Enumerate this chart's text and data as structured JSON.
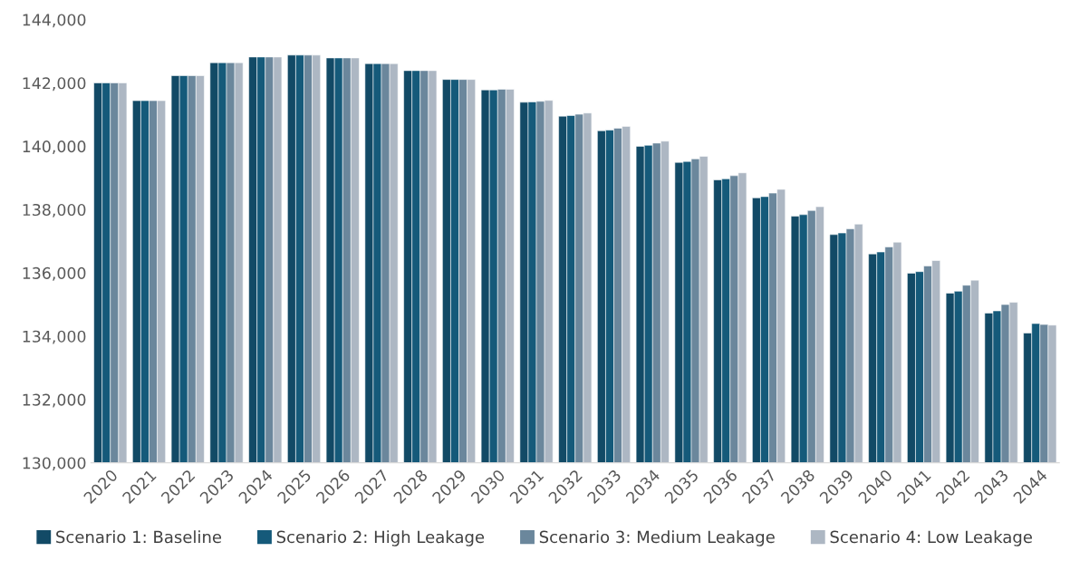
{
  "chart_data": {
    "type": "bar",
    "categories": [
      "2020",
      "2021",
      "2022",
      "2023",
      "2024",
      "2025",
      "2026",
      "2027",
      "2028",
      "2029",
      "2030",
      "2031",
      "2032",
      "2033",
      "2034",
      "2035",
      "2036",
      "2037",
      "2038",
      "2039",
      "2040",
      "2041",
      "2042",
      "2043",
      "2044"
    ],
    "series": [
      {
        "name": "Scenario 1: Baseline",
        "color": "#124a66",
        "values": [
          142000,
          141440,
          142230,
          142640,
          142820,
          142880,
          142790,
          142610,
          142390,
          142110,
          141780,
          141390,
          140950,
          140490,
          140000,
          139490,
          138940,
          138370,
          137790,
          137210,
          136600,
          135990,
          135360,
          134730,
          134100
        ]
      },
      {
        "name": "Scenario 2: High Leakage",
        "color": "#155a7a",
        "values": [
          142000,
          141440,
          142230,
          142640,
          142820,
          142880,
          142790,
          142610,
          142390,
          142110,
          141780,
          141400,
          140970,
          140510,
          140030,
          139520,
          138970,
          138410,
          137840,
          137260,
          136660,
          136040,
          135420,
          134800,
          134400
        ]
      },
      {
        "name": "Scenario 3: Medium Leakage",
        "color": "#6b879c",
        "values": [
          142000,
          141440,
          142230,
          142640,
          142820,
          142880,
          142790,
          142610,
          142390,
          142110,
          141800,
          141420,
          141010,
          140570,
          140100,
          139600,
          139070,
          138520,
          137970,
          137390,
          136820,
          136220,
          135610,
          135000,
          134370
        ]
      },
      {
        "name": "Scenario 4: Low Leakage",
        "color": "#adb7c3",
        "values": [
          142000,
          141440,
          142230,
          142640,
          142820,
          142880,
          142790,
          142610,
          142390,
          142110,
          141800,
          141450,
          141050,
          140630,
          140160,
          139680,
          139160,
          138640,
          138090,
          137540,
          136970,
          136390,
          135770,
          135070,
          134350
        ]
      }
    ],
    "ylim": [
      130000,
      144000
    ],
    "yticks": [
      {
        "value": 130000,
        "label": "130,000"
      },
      {
        "value": 132000,
        "label": "132,000"
      },
      {
        "value": 134000,
        "label": "134,000"
      },
      {
        "value": 136000,
        "label": "136,000"
      },
      {
        "value": 138000,
        "label": "138,000"
      },
      {
        "value": 140000,
        "label": "140,000"
      },
      {
        "value": 142000,
        "label": "142,000"
      },
      {
        "value": 144000,
        "label": "144,000"
      }
    ],
    "grid": false,
    "legend": "bottom"
  }
}
